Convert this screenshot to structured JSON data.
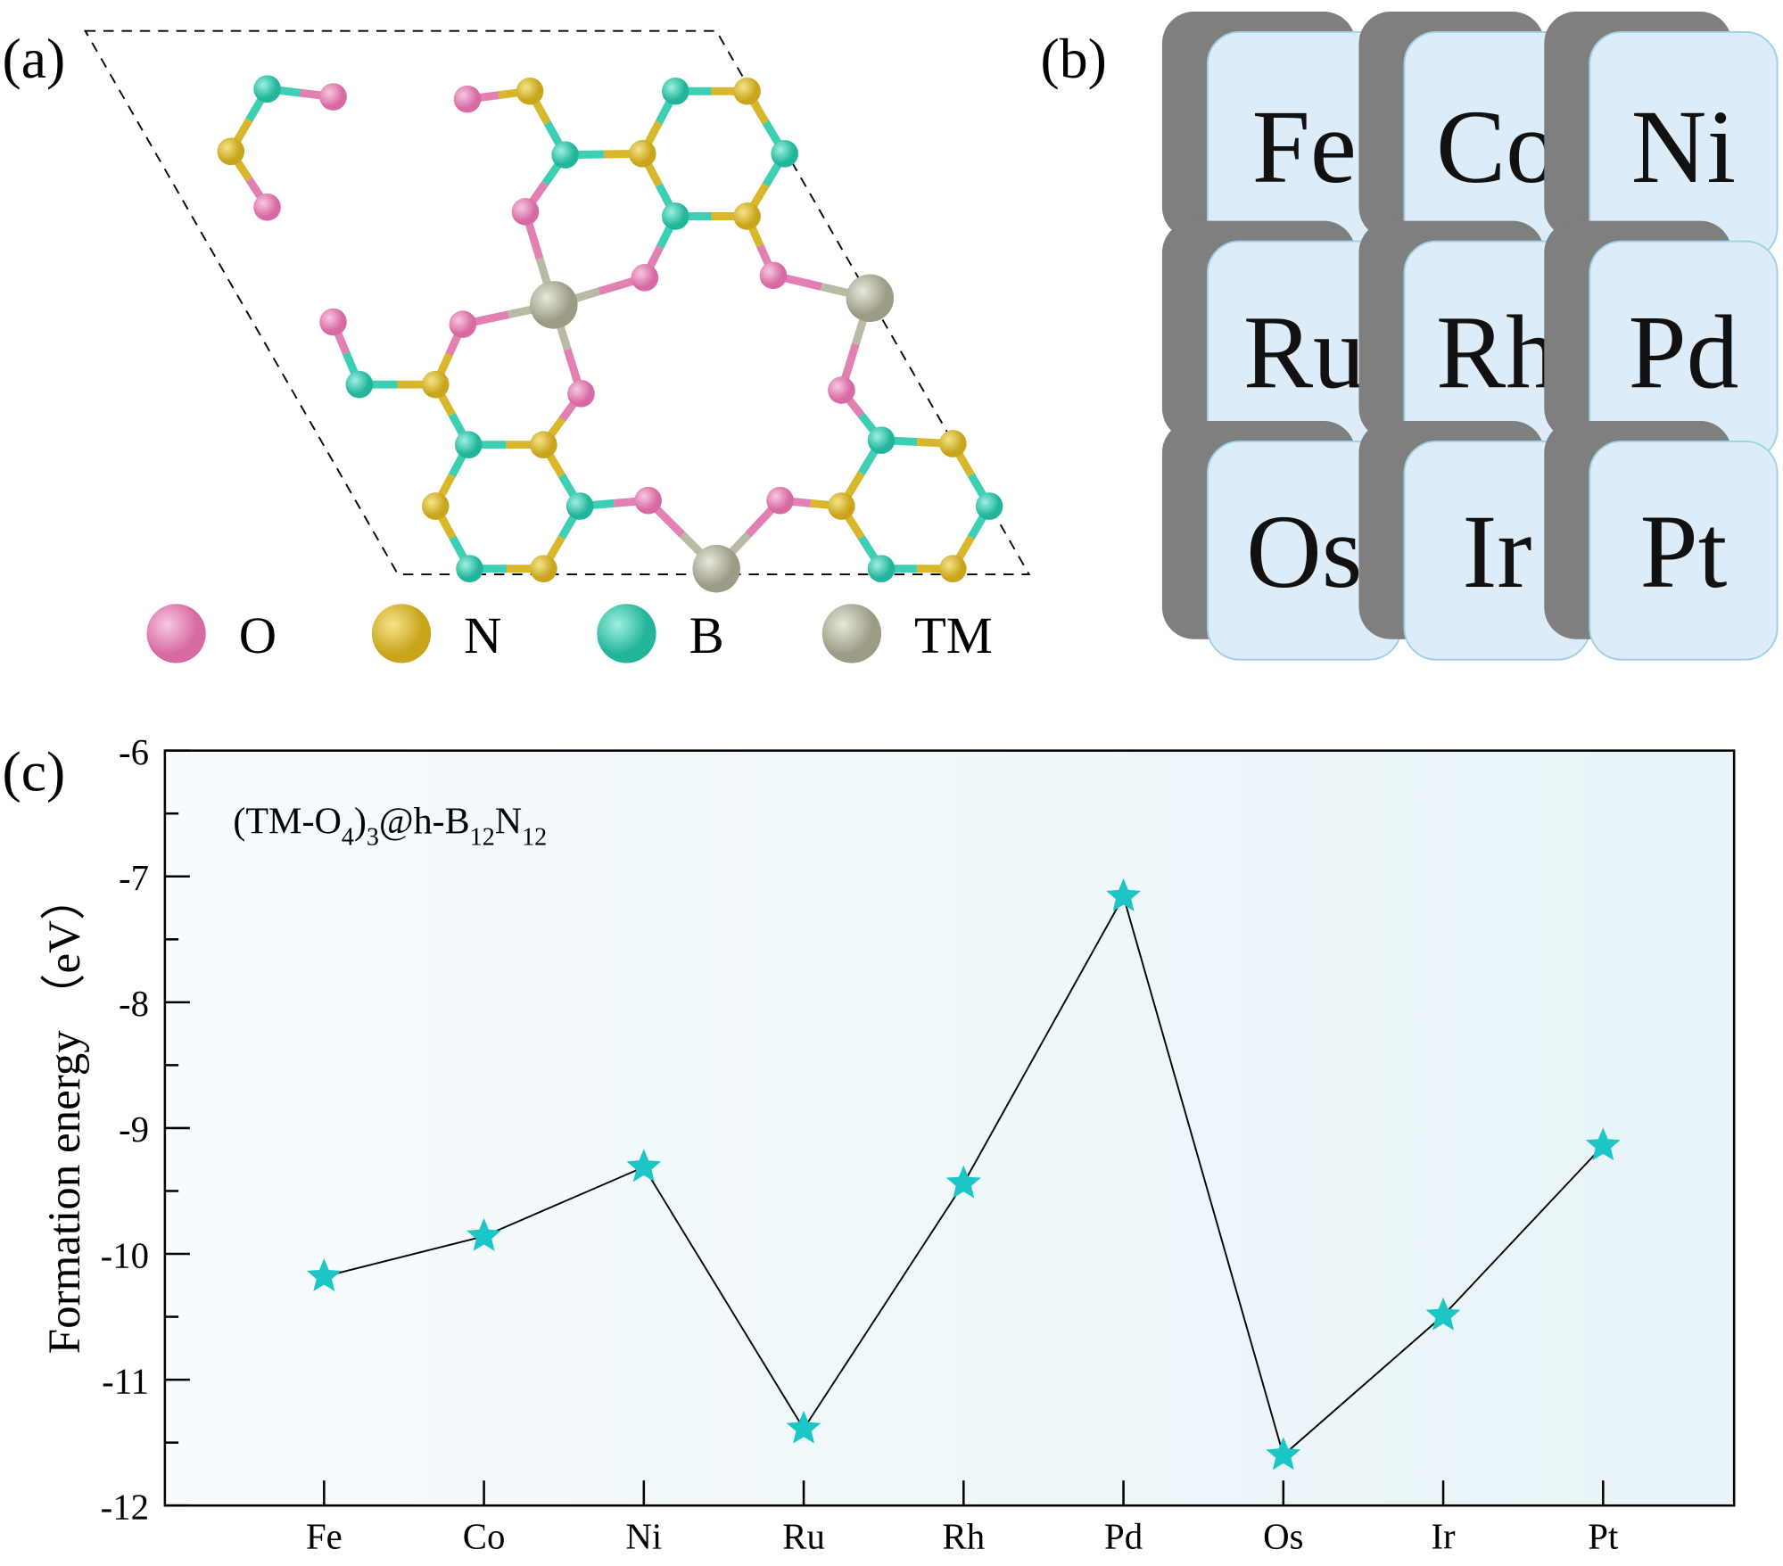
{
  "panel_labels": {
    "a": "(a)",
    "b": "(b)",
    "c": "(c)"
  },
  "legend": [
    {
      "label": "O",
      "color": "#e27fb3"
    },
    {
      "label": "N",
      "color": "#d9b72c"
    },
    {
      "label": "B",
      "color": "#3ccfb4"
    },
    {
      "label": "TM",
      "color": "#b9b9a4"
    }
  ],
  "tiles": [
    "Fe",
    "Co",
    "Ni",
    "Ru",
    "Rh",
    "Pd",
    "Os",
    "Ir",
    "Pt"
  ],
  "tile_color": "#dcecf8",
  "chart_data": {
    "type": "line",
    "annotation": {
      "main": "(TM-O",
      "sub1": "4",
      "mid": ")",
      "sub2": "3",
      "rest": "@h-B",
      "sub3": "12",
      "n": "N",
      "sub4": "12"
    },
    "ylabel": "Formation energy  （eV）",
    "categories": [
      "Fe",
      "Co",
      "Ni",
      "Ru",
      "Rh",
      "Pd",
      "Os",
      "Ir",
      "Pt"
    ],
    "values": [
      -10.18,
      -9.86,
      -9.31,
      -11.39,
      -9.44,
      -7.16,
      -11.6,
      -10.49,
      -9.14
    ],
    "ylim": [
      -12,
      -6
    ],
    "yticks": [
      "-6",
      "-7",
      "-8",
      "-9",
      "-10",
      "-11",
      "-12"
    ],
    "marker": "star",
    "marker_color": "#1cc6c6",
    "line_color": "#000000",
    "grid": false
  }
}
